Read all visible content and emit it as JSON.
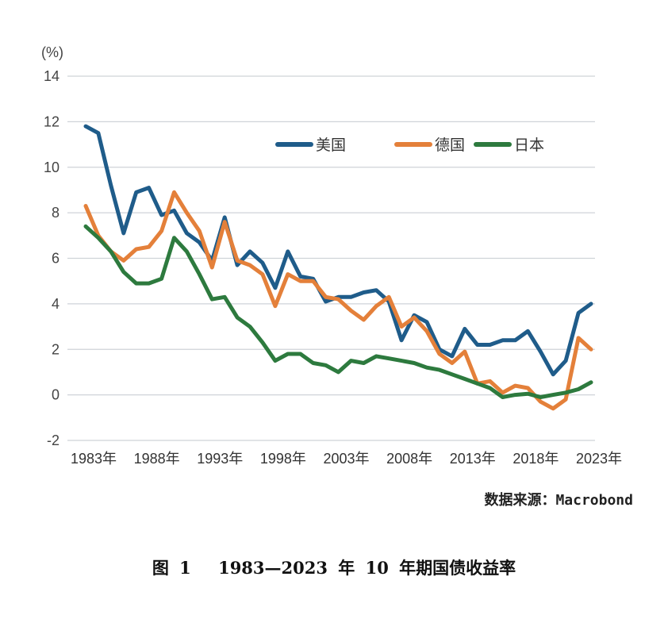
{
  "chart_data": {
    "type": "line",
    "unit_label": "(%)",
    "x": [
      1983,
      1984,
      1985,
      1986,
      1987,
      1988,
      1989,
      1990,
      1991,
      1992,
      1993,
      1994,
      1995,
      1996,
      1997,
      1998,
      1999,
      2000,
      2001,
      2002,
      2003,
      2004,
      2005,
      2006,
      2007,
      2008,
      2009,
      2010,
      2011,
      2012,
      2013,
      2014,
      2015,
      2016,
      2017,
      2018,
      2019,
      2020,
      2021,
      2022,
      2023
    ],
    "x_tick_labels": [
      "1983年",
      "1988年",
      "1993年",
      "1998年",
      "2003年",
      "2008年",
      "2013年",
      "2018年",
      "2023年"
    ],
    "x_ticks": [
      1983,
      1988,
      1993,
      1998,
      2003,
      2008,
      2013,
      2018,
      2023
    ],
    "ylim": [
      -2,
      14
    ],
    "y_ticks": [
      -2,
      0,
      2,
      4,
      6,
      8,
      10,
      12,
      14
    ],
    "grid": true,
    "legend_position": "top-right",
    "series": [
      {
        "name": "美国",
        "color": "#1f5c8a",
        "values": [
          11.8,
          11.5,
          9.2,
          7.1,
          8.9,
          9.1,
          7.9,
          8.1,
          7.1,
          6.7,
          5.9,
          7.8,
          5.7,
          6.3,
          5.8,
          4.7,
          6.3,
          5.2,
          5.1,
          4.1,
          4.3,
          4.3,
          4.5,
          4.6,
          4.1,
          2.4,
          3.5,
          3.2,
          2.0,
          1.7,
          2.9,
          2.2,
          2.2,
          2.4,
          2.4,
          2.8,
          1.9,
          0.9,
          1.5,
          3.6,
          4.0
        ]
      },
      {
        "name": "德国",
        "color": "#e4803a",
        "values": [
          8.3,
          7.0,
          6.3,
          5.9,
          6.4,
          6.5,
          7.2,
          8.9,
          8.0,
          7.2,
          5.6,
          7.6,
          5.9,
          5.7,
          5.3,
          3.9,
          5.3,
          5.0,
          5.0,
          4.3,
          4.2,
          3.7,
          3.3,
          3.9,
          4.3,
          3.0,
          3.4,
          2.8,
          1.8,
          1.4,
          1.9,
          0.5,
          0.6,
          0.1,
          0.4,
          0.3,
          -0.3,
          -0.6,
          -0.2,
          2.5,
          2.0
        ]
      },
      {
        "name": "日本",
        "color": "#2d7a3e",
        "values": [
          7.4,
          6.9,
          6.3,
          5.4,
          4.9,
          4.9,
          5.1,
          6.9,
          6.3,
          5.3,
          4.2,
          4.3,
          3.4,
          3.0,
          2.3,
          1.5,
          1.8,
          1.8,
          1.4,
          1.3,
          1.0,
          1.5,
          1.4,
          1.7,
          1.6,
          1.5,
          1.4,
          1.2,
          1.1,
          0.9,
          0.7,
          0.5,
          0.3,
          -0.1,
          0.0,
          0.05,
          -0.1,
          0.0,
          0.1,
          0.25,
          0.55
        ]
      }
    ]
  },
  "source": "数据来源：Macrobond",
  "caption": "图 1　 1983—2023 年 10 年期国债收益率"
}
